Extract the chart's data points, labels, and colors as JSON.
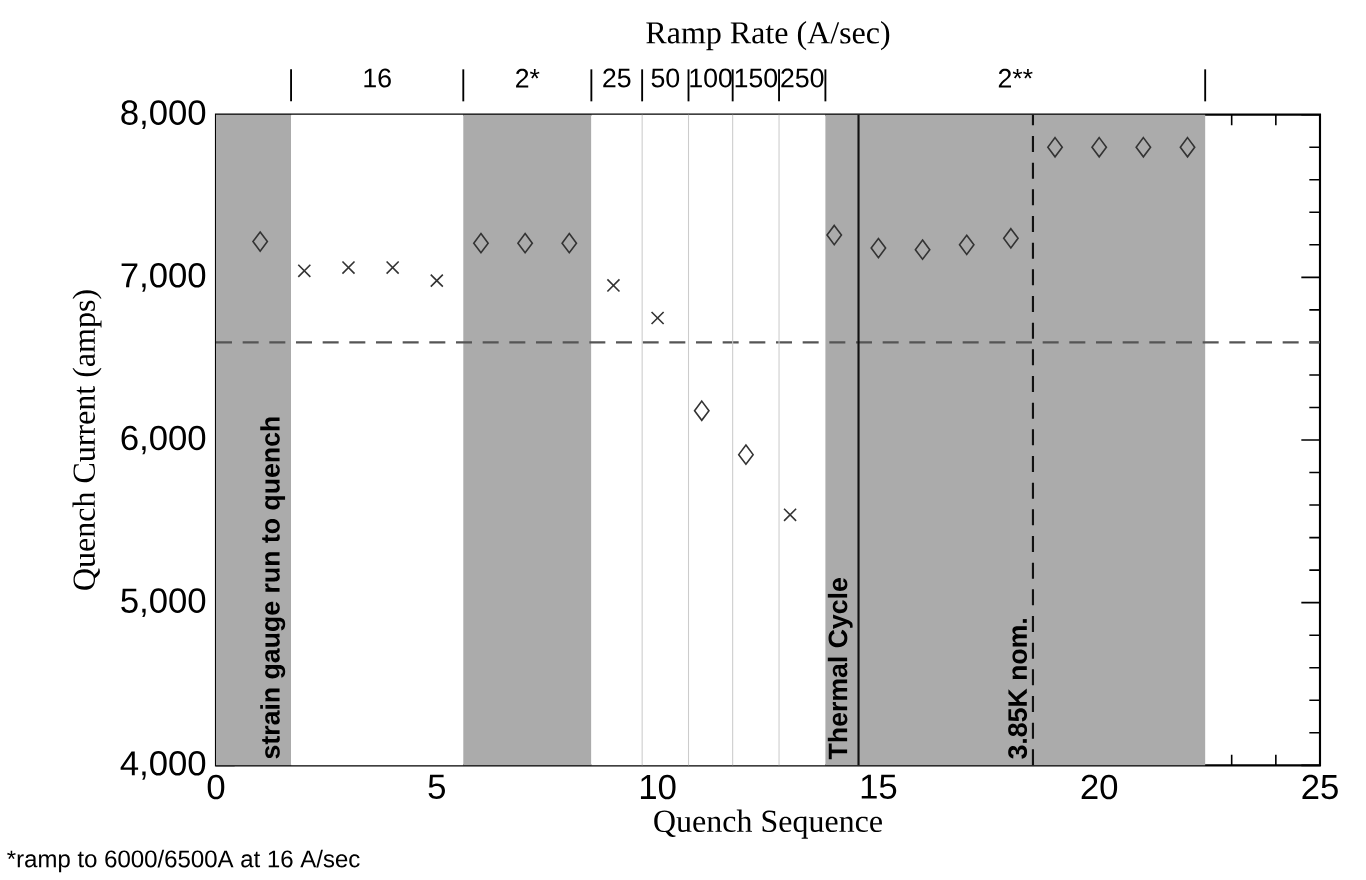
{
  "chart_data": {
    "type": "scatter",
    "xlabel": "Quench Sequence",
    "ylabel": "Quench Current (amps)",
    "x2label": "Ramp Rate (A/sec)",
    "xlim": [
      0,
      25
    ],
    "xticks": [
      0,
      5,
      10,
      15,
      20,
      25
    ],
    "ylim": [
      4000,
      8000
    ],
    "yticks": [
      {
        "value": 4000,
        "label": "4,000"
      },
      {
        "value": 5000,
        "label": "5,000"
      },
      {
        "value": 6000,
        "label": "6,000"
      },
      {
        "value": 7000,
        "label": "7,000"
      },
      {
        "value": 8000,
        "label": "8,000"
      }
    ],
    "series": [
      {
        "marker": "diamond",
        "color": "#333333",
        "x": [
          1,
          6,
          7,
          8,
          11,
          12,
          14,
          15,
          16,
          17,
          18,
          19,
          20,
          21,
          22
        ],
        "values": [
          7220,
          7210,
          7210,
          7210,
          6180,
          5910,
          7260,
          7180,
          7170,
          7200,
          7240,
          7800,
          7800,
          7800,
          7800
        ]
      },
      {
        "marker": "cross",
        "color": "#333333",
        "x": [
          2,
          3,
          4,
          5,
          9,
          10,
          13
        ],
        "values": [
          7040,
          7060,
          7060,
          6980,
          6950,
          6750,
          5540
        ]
      }
    ],
    "bands": [
      {
        "axis": "x",
        "from": 0,
        "to": 1.7,
        "color": "#ababab"
      },
      {
        "axis": "x",
        "from": 1.7,
        "to": 5.6,
        "label": "16",
        "color": "#ffffff"
      },
      {
        "axis": "x",
        "from": 5.6,
        "to": 8.5,
        "label": "2*",
        "color": "#ababab"
      },
      {
        "axis": "x",
        "from": 8.5,
        "to": 9.65,
        "label": "25",
        "color": "#ffffff"
      },
      {
        "axis": "x",
        "from": 9.65,
        "to": 10.7,
        "label": "50",
        "color": "#ffffff"
      },
      {
        "axis": "x",
        "from": 10.7,
        "to": 11.7,
        "label": "100",
        "color": "#ffffff"
      },
      {
        "axis": "x",
        "from": 11.7,
        "to": 12.75,
        "label": "150",
        "color": "#ffffff"
      },
      {
        "axis": "x",
        "from": 12.75,
        "to": 13.8,
        "label": "250",
        "color": "#ffffff"
      },
      {
        "axis": "x",
        "from": 13.8,
        "to": 22.4,
        "label": "2**",
        "color": "#ababab"
      }
    ],
    "ref_lines": [
      {
        "axis": "y",
        "value": 6600,
        "color": "#555555",
        "line_style": "dashed"
      },
      {
        "axis": "x",
        "value": 14.55,
        "label": "Thermal Cycle",
        "color": "#111111",
        "line_style": "solid"
      },
      {
        "axis": "x",
        "value": 18.5,
        "label": "3.85K nom.",
        "color": "#111111",
        "line_style": "dashed"
      },
      {
        "axis": "x",
        "value": 9.65,
        "color": "#cccccc",
        "line_style": "solid"
      },
      {
        "axis": "x",
        "value": 10.7,
        "color": "#cccccc",
        "line_style": "solid"
      },
      {
        "axis": "x",
        "value": 11.7,
        "color": "#cccccc",
        "line_style": "solid"
      },
      {
        "axis": "x",
        "value": 12.75,
        "color": "#cccccc",
        "line_style": "solid"
      }
    ],
    "annotations": [
      {
        "text": "strain gauge run to quench",
        "x": 1.7,
        "y": 4000
      },
      "*ramp to 6000/6500A at 16 A/sec"
    ],
    "grid": false
  }
}
